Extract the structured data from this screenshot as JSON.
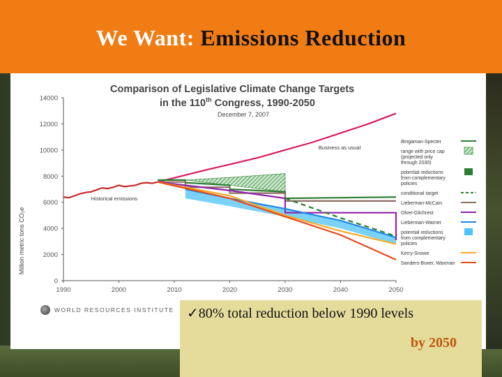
{
  "slide": {
    "title_prefix": "We Want:",
    "title_main": "Emissions Reduction",
    "callout_line1": "✓80% total reduction below 1990 levels",
    "callout_line2": "by 2050",
    "source_label": "WORLD RESOURCES INSTITUTE"
  },
  "colors": {
    "header": "#f27c14",
    "callout": "#e5dc9c",
    "callout_accent": "#c0570e"
  },
  "chart_data": {
    "type": "line",
    "title_line1": "Comparison of Legislative Climate Change Targets",
    "title_line2a": "in the 110",
    "title_line2_sup": "th",
    "title_line2b": " Congress, 1990-2050",
    "date": "December 7, 2007",
    "ylabel": "Million metric tons CO₂e",
    "xlim": [
      1990,
      2050
    ],
    "ylim": [
      0,
      14000
    ],
    "x_ticks": [
      1990,
      2000,
      2010,
      2020,
      2030,
      2040,
      2050
    ],
    "y_ticks": [
      0,
      2000,
      4000,
      6000,
      8000,
      10000,
      12000,
      14000
    ],
    "y_tick_labels": [
      "0",
      "2000",
      "4000",
      "6000",
      "8000",
      "10000",
      "12000",
      "14000"
    ],
    "annotations": [
      {
        "text": "Business as usual",
        "x": 2036,
        "y": 10050
      },
      {
        "text": "Historical emissions",
        "x": 1995,
        "y": 6150
      }
    ],
    "series": [
      {
        "name": "Historical emissions",
        "color": "#c62828",
        "style": "solid",
        "x": [
          1990,
          1991,
          1992,
          1993,
          1994,
          1995,
          1996,
          1997,
          1998,
          1999,
          2000,
          2001,
          2002,
          2003,
          2004,
          2005,
          2006,
          2007
        ],
        "y": [
          6400,
          6350,
          6500,
          6650,
          6750,
          6800,
          6950,
          7100,
          7050,
          7150,
          7300,
          7200,
          7250,
          7300,
          7450,
          7500,
          7450,
          7550
        ]
      },
      {
        "name": "Business as usual",
        "color": "#d81b60",
        "style": "solid",
        "x": [
          2007,
          2015,
          2020,
          2025,
          2030,
          2035,
          2040,
          2045,
          2050
        ],
        "y": [
          7550,
          8400,
          8900,
          9400,
          10000,
          10600,
          11300,
          12000,
          12800
        ]
      },
      {
        "name": "Bingaman-Specter",
        "color": "#2e7d32",
        "style": "solid",
        "x": [
          2007,
          2012,
          2012,
          2020,
          2020,
          2030,
          2030,
          2050
        ],
        "y": [
          7700,
          7700,
          7500,
          7300,
          7000,
          6800,
          6300,
          6400
        ]
      },
      {
        "name": "Lieberman-McCain",
        "color": "#8d6e63",
        "style": "solid",
        "x": [
          2007,
          2012,
          2012,
          2020,
          2020,
          2030,
          2030,
          2050
        ],
        "y": [
          7550,
          7550,
          7150,
          7150,
          6700,
          6700,
          6100,
          6100
        ]
      },
      {
        "name": "Olver-Gilchrest",
        "color": "#8e24aa",
        "style": "solid",
        "x": [
          2007,
          2020,
          2030,
          2030,
          2050,
          2050
        ],
        "y": [
          7550,
          6900,
          6300,
          5200,
          5200,
          3100
        ]
      },
      {
        "name": "Lieberman-Warner",
        "color": "#1e88e5",
        "style": "solid",
        "x": [
          2012,
          2020,
          2030,
          2040,
          2050
        ],
        "y": [
          7000,
          6300,
          5500,
          4600,
          3300
        ]
      },
      {
        "name": "Kerry-Snowe",
        "color": "#f9a825",
        "style": "solid",
        "x": [
          2007,
          2020,
          2030,
          2040,
          2050
        ],
        "y": [
          7550,
          6500,
          5000,
          3800,
          2800
        ]
      },
      {
        "name": "Sanders-Boxer, Waxman",
        "color": "#e64a19",
        "style": "solid",
        "x": [
          2007,
          2020,
          2030,
          2040,
          2050
        ],
        "y": [
          7550,
          6300,
          4900,
          3500,
          1600
        ]
      },
      {
        "name": "conditional target",
        "color": "#2e7d32",
        "style": "dashed",
        "x": [
          2030,
          2040,
          2050
        ],
        "y": [
          6300,
          4800,
          3400
        ]
      }
    ],
    "bands": [
      {
        "name": "range with price cap",
        "color": "#4caf50",
        "pattern": "hatch",
        "x": [
          2012,
          2020,
          2030
        ],
        "y_low": [
          7700,
          7300,
          6800
        ],
        "y_high": [
          7700,
          7900,
          8200
        ]
      },
      {
        "name": "potential reductions from complementary policies",
        "color": "#4fc3f7",
        "pattern": "solid",
        "x": [
          2012,
          2020,
          2030,
          2040,
          2050
        ],
        "y_low": [
          6300,
          5700,
          4900,
          4000,
          2800
        ],
        "y_high": [
          7000,
          6300,
          5500,
          4600,
          3300
        ]
      }
    ],
    "legend_position": "right",
    "legend": [
      {
        "label": "Bingaman-Specter",
        "color": "#2e7d32",
        "kind": "line"
      },
      {
        "label": "range with price cap (projected only through 2030)",
        "color": "#4caf50",
        "kind": "hatch"
      },
      {
        "label": "potential reductions from complementary policies",
        "color": "#2e7d32",
        "kind": "box"
      },
      {
        "label": "conditional target",
        "color": "#2e7d32",
        "kind": "dash"
      },
      {
        "label": "Lieberman-McCain",
        "color": "#8d6e63",
        "kind": "line"
      },
      {
        "label": "Olver-Gilchrest",
        "color": "#8e24aa",
        "kind": "line"
      },
      {
        "label": "Lieberman-Warner",
        "color": "#1e88e5",
        "kind": "line"
      },
      {
        "label": "potential reductions from complementary policies",
        "color": "#4fc3f7",
        "kind": "box"
      },
      {
        "label": "Kerry-Snowe",
        "color": "#f9a825",
        "kind": "line"
      },
      {
        "label": "Sanders-Boxer, Waxman",
        "color": "#e64a19",
        "kind": "line"
      }
    ],
    "grid": false
  }
}
